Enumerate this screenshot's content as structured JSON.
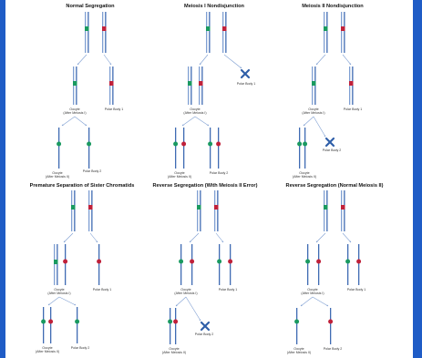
{
  "colors": {
    "frame": "#1f5cc6",
    "chromosome": "#7f9fd2",
    "chromosome_dark": "#3f6bb3",
    "centromere_green": "#1a9a60",
    "centromere_red": "#c0213a",
    "arrow": "#7f9fd2",
    "polar_cross": "#2f5fa8"
  },
  "panels": [
    {
      "title": "Normal Segregation",
      "labels": [
        "Oocyte",
        "(After Meiosis I)",
        "Polar Body 1",
        "Oocyte",
        "(After Meiosis II)",
        "Polar Body 2"
      ]
    },
    {
      "title": "Meiosis I Nondisjunction",
      "labels": [
        "Polar Body 1",
        "Oocyte",
        "(After Meiosis I)",
        "Oocyte",
        "(After Meiosis II)",
        "Polar Body 2"
      ]
    },
    {
      "title": "Meiosis II Nondisjunction",
      "labels": [
        "Oocyte",
        "(After Meiosis I)",
        "Polar Body 1",
        "Polar Body 2",
        "Oocyte",
        "(After Meiosis II)"
      ]
    },
    {
      "title": "Premature Separation of Sister Chromatids",
      "labels": [
        "Oocyte",
        "(After Meiosis I)",
        "Polar Body 1",
        "Oocyte",
        "(After Meiosis II)",
        "Polar Body 2"
      ]
    },
    {
      "title": "Reverse Segregation (With Meiosis II Error)",
      "labels": [
        "Oocyte",
        "(After Meiosis I)",
        "Polar Body 1",
        "Oocyte",
        "(After Meiosis II)",
        "Polar Body 2"
      ]
    },
    {
      "title": "Reverse Segregation (Normal Meiosis II)",
      "labels": [
        "Oocyte",
        "(After Meiosis I)",
        "Polar Body 1",
        "Oocyte",
        "(After Meiosis II)",
        "Polar Body 2"
      ]
    }
  ]
}
